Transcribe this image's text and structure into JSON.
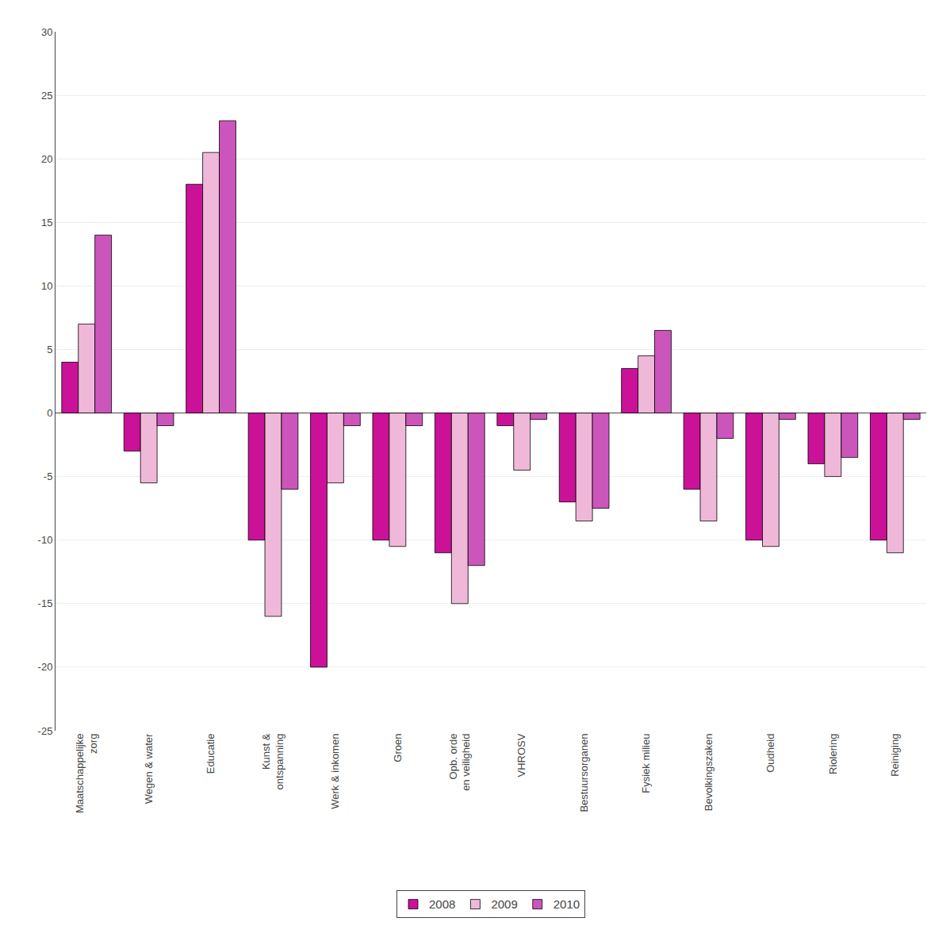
{
  "chart_data": {
    "type": "bar",
    "categories": [
      "Maatschappelijke\nzorg",
      "Wegen & water",
      "Educatie",
      "Kunst &\nontspanning",
      "Werk & inkomen",
      "Groen",
      "Opb. orde\nen veiligheid",
      "VHROSV",
      "Bestuursorganen",
      "Fysiek milieu",
      "Bevolkingszaken",
      "Oudheid",
      "Riolering",
      "Reiniging"
    ],
    "series": [
      {
        "name": "2008",
        "color": "#CC1199",
        "values": [
          4,
          -3,
          18,
          -10,
          -20,
          -10,
          -11,
          -1,
          -7,
          3.5,
          -6,
          -10,
          -4,
          -10
        ]
      },
      {
        "name": "2009",
        "color": "#F0B8D8",
        "values": [
          7,
          -5.5,
          20.5,
          -16,
          -5.5,
          -10.5,
          -15,
          -4.5,
          -8.5,
          4.5,
          -8.5,
          -10.5,
          -5,
          -11
        ]
      },
      {
        "name": "2010",
        "color": "#CC55BB",
        "values": [
          14,
          -1,
          23,
          -6,
          -1,
          -1,
          -12,
          -0.5,
          -7.5,
          6.5,
          -2,
          -0.5,
          -3.5,
          -0.5
        ]
      }
    ],
    "ylim": [
      -25,
      30
    ],
    "yticks": [
      -25,
      -20,
      -15,
      -10,
      -5,
      0,
      5,
      10,
      15,
      20,
      25,
      30
    ],
    "grid": true,
    "legend": "bottom"
  }
}
